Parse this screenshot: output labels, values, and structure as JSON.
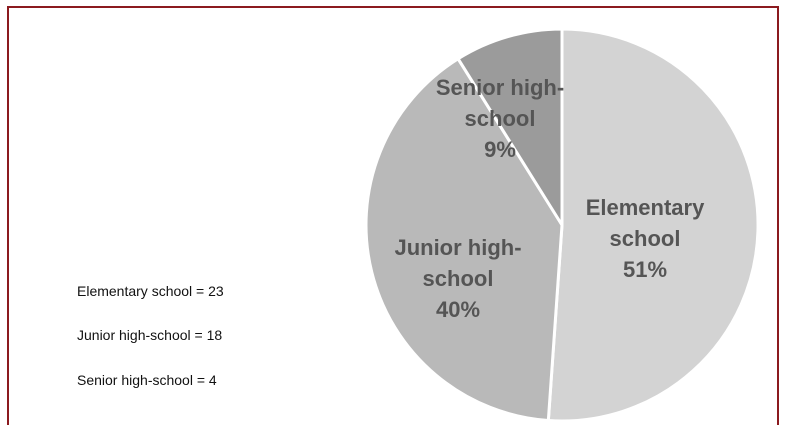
{
  "chart_data": {
    "type": "pie",
    "categories": [
      "Elementary school",
      "Junior high-school",
      "Senior high-school"
    ],
    "values": [
      23,
      18,
      4
    ],
    "percent_labels": [
      "51%",
      "40%",
      "9%"
    ],
    "slice_label_lines": [
      [
        "Elementary",
        "school"
      ],
      [
        "Junior high-",
        "school"
      ],
      [
        "Senior high-",
        "school"
      ]
    ],
    "colors": [
      "#d3d3d3",
      "#b9b9b9",
      "#9b9b9b"
    ],
    "label_color": "#555555",
    "start_angle_deg": 0,
    "direction": "clockwise"
  },
  "legend": {
    "items": [
      "Elementary school = 23",
      "Junior high-school = 18",
      "Senior high-school = 4"
    ]
  }
}
